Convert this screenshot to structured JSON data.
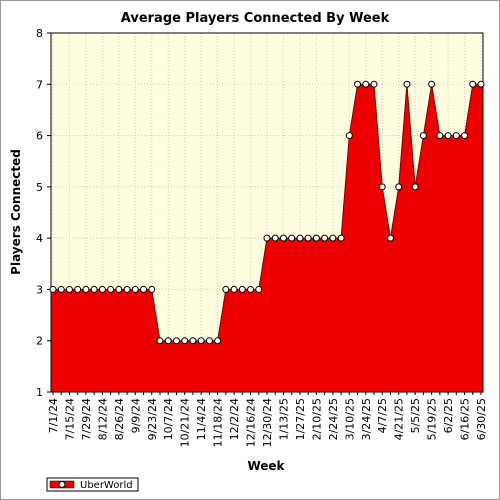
{
  "chart_data": {
    "type": "area",
    "title": "Average Players Connected By Week",
    "xlabel": "Week",
    "ylabel": "Players Connected",
    "ylim": [
      1,
      8
    ],
    "yticks": [
      "1",
      "2",
      "3",
      "4",
      "5",
      "6",
      "7",
      "8"
    ],
    "x": [
      "7/1/24",
      "7/8/24",
      "7/15/24",
      "7/22/24",
      "7/29/24",
      "8/5/24",
      "8/12/24",
      "8/19/24",
      "8/26/24",
      "9/2/24",
      "9/9/24",
      "9/16/24",
      "9/23/24",
      "9/30/24",
      "10/7/24",
      "10/14/24",
      "10/21/24",
      "10/28/24",
      "11/4/24",
      "11/11/24",
      "11/18/24",
      "11/25/24",
      "12/2/24",
      "12/9/24",
      "12/16/24",
      "12/23/24",
      "12/30/24",
      "1/6/25",
      "1/13/25",
      "1/20/25",
      "1/27/25",
      "2/3/25",
      "2/10/25",
      "2/17/25",
      "2/24/25",
      "3/3/25",
      "3/10/25",
      "3/17/25",
      "3/24/25",
      "3/31/25",
      "4/7/25",
      "4/14/25",
      "4/21/25",
      "4/28/25",
      "5/5/25",
      "5/12/25",
      "5/19/25",
      "5/26/25",
      "6/2/25",
      "6/9/25",
      "6/16/25",
      "6/23/25",
      "6/30/25"
    ],
    "xtick_labels": [
      "7/1/24",
      "7/15/24",
      "7/29/24",
      "8/12/24",
      "8/26/24",
      "9/9/24",
      "9/23/24",
      "10/7/24",
      "10/21/24",
      "11/4/24",
      "11/18/24",
      "12/2/24",
      "12/16/24",
      "12/30/24",
      "1/13/25",
      "1/27/25",
      "2/10/25",
      "2/24/25",
      "3/10/25",
      "3/24/25",
      "4/7/25",
      "4/21/25",
      "5/5/25",
      "5/19/25",
      "6/2/25",
      "6/16/25",
      "6/30/25"
    ],
    "series": [
      {
        "name": "UberWorld",
        "color": "#ee0000",
        "values": [
          3,
          3,
          3,
          3,
          3,
          3,
          3,
          3,
          3,
          3,
          3,
          3,
          3,
          2,
          2,
          2,
          2,
          2,
          2,
          2,
          2,
          3,
          3,
          3,
          3,
          3,
          4,
          4,
          4,
          4,
          4,
          4,
          4,
          4,
          4,
          4,
          6,
          7,
          7,
          7,
          5,
          4,
          5,
          7,
          5,
          6,
          7,
          6,
          6,
          6,
          6,
          7,
          7
        ]
      }
    ],
    "grid": true,
    "legend": "bottom-left",
    "plot_background": "#fffde0"
  }
}
